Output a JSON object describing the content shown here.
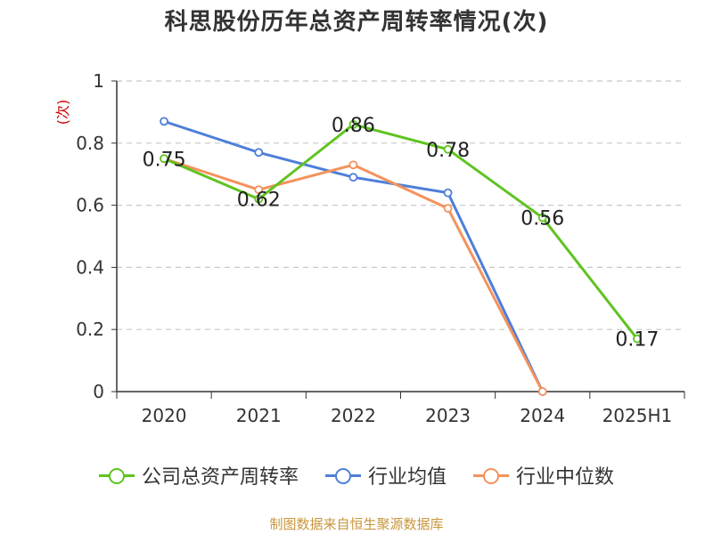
{
  "chart_data": {
    "type": "line",
    "title": "科思股份历年总资产周转率情况(次)",
    "ylabel": "(次)",
    "categories": [
      "2020",
      "2021",
      "2022",
      "2023",
      "2024",
      "2025H1"
    ],
    "ylim": [
      0,
      1
    ],
    "yticks": [
      "0",
      "0.2",
      "0.4",
      "0.6",
      "0.8",
      "1"
    ],
    "grid": true,
    "legend_position": "bottom",
    "series": [
      {
        "name": "公司总资产周转率",
        "color": "#5fc31f",
        "values": [
          0.75,
          0.62,
          0.86,
          0.78,
          0.56,
          0.17
        ],
        "labels": [
          "0.75",
          "0.62",
          "0.86",
          "0.78",
          "0.56",
          "0.17"
        ]
      },
      {
        "name": "行业均值",
        "color": "#4e7fd9",
        "values": [
          0.87,
          0.77,
          0.69,
          0.64,
          0.0,
          null
        ]
      },
      {
        "name": "行业中位数",
        "color": "#f4925c",
        "values": [
          0.75,
          0.65,
          0.73,
          0.59,
          0.0,
          null
        ]
      }
    ]
  },
  "source": "制图数据来自恒生聚源数据库"
}
